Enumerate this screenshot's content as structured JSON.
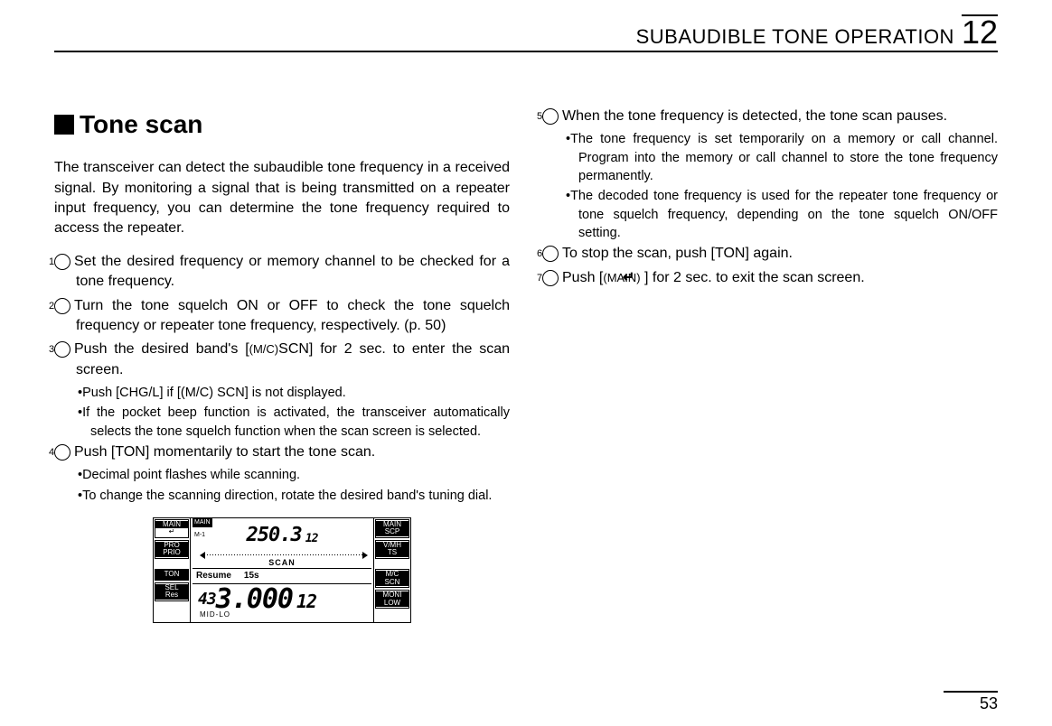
{
  "header": {
    "title": "SUBAUDIBLE TONE OPERATION",
    "chapter": "12"
  },
  "left": {
    "section_prefix": "■",
    "section_title": "Tone scan",
    "intro": "The transceiver can detect the subaudible tone frequency in a received signal. By monitoring a signal that is being transmitted on a repeater input frequency, you can determine the tone frequency required to access the repeater.",
    "steps": {
      "s1": "Set the desired frequency or memory channel to be checked for a tone frequency.",
      "s2": "Turn the tone squelch ON or OFF to check the tone squelch frequency or repeater tone frequency, respectively. (p. 50)",
      "s3_pre": "Push the desired band's [",
      "s3_small": "(M/C)",
      "s3_post": "SCN] for 2 sec. to enter the scan screen.",
      "s3_sub1": "Push [CHG/L] if [(M/C) SCN] is not displayed.",
      "s3_sub2": "If the pocket beep function is activated, the transceiver automatically selects the tone squelch function when the scan screen is selected.",
      "s4": "Push [TON] momentarily to start the tone scan.",
      "s4_sub1": "Decimal point flashes while scanning.",
      "s4_sub2": "To change the scanning direction, rotate the desired band's tuning dial."
    }
  },
  "right": {
    "steps": {
      "s5": "When the tone frequency is detected, the tone scan pauses.",
      "s5_sub1": "The tone frequency is set temporarily on a memory or call channel. Program into the memory or call channel to store the tone frequency permanently.",
      "s5_sub2": "The decoded tone frequency is used for the repeater tone frequency or tone squelch frequency, depending on the tone squelch ON/OFF setting.",
      "s6": "To stop the scan, push [TON] again.",
      "s7_pre": "Push [",
      "s7_small": "(MAIN)",
      "s7_arrow": "↵",
      "s7_post": "] for 2 sec. to exit the scan screen."
    }
  },
  "device": {
    "left_buttons": {
      "b1_top": "MAIN",
      "b1_bot": "↵",
      "b2_top": "PRO",
      "b2_bot": "PRIO",
      "b3_top": "",
      "b3_bot": "TON",
      "b4_top": "SEL",
      "b4_bot": "Res"
    },
    "right_buttons": {
      "b1_top": "MAIN",
      "b1_bot": "SCP",
      "b2_top": "V/MH",
      "b2_bot": "TS",
      "b3_top": "M/C",
      "b3_bot": "SCN",
      "b4_top": "MONI",
      "b4_bot": "LOW"
    },
    "top_panel": {
      "main_tag": "MAIN",
      "band_indicator": "M-1",
      "freq": "250.3",
      "chan": "12",
      "scan": "SCAN"
    },
    "resume": {
      "label": "Resume",
      "value": "15s"
    },
    "bottom_panel": {
      "lead": "43",
      "freq": "3.000",
      "chan": "12",
      "midlo": "MID-LO"
    }
  },
  "page_number": "53"
}
